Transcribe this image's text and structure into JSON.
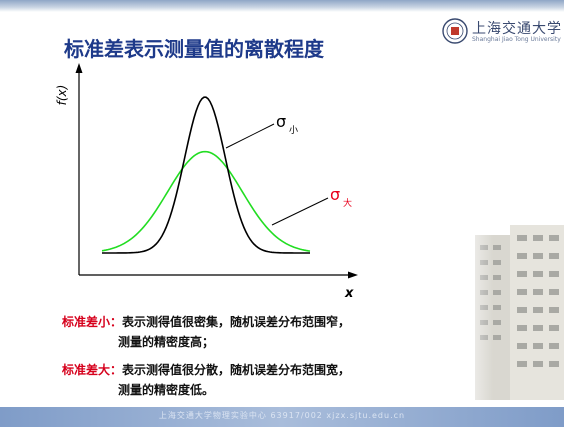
{
  "header": {
    "title": "标准差表示测量值的离散程度",
    "logo_cn": "上海交通大学",
    "logo_en": "Shanghai Jiao Tong University"
  },
  "chart_data": {
    "type": "line",
    "ylabel": "f(x)",
    "xlabel": "x",
    "grid": false,
    "series": [
      {
        "name": "σ小",
        "sigma_label": "σ",
        "sub_label": "小",
        "color": "#000000",
        "peak": 1.0,
        "spread": 0.55
      },
      {
        "name": "σ大",
        "sigma_label": "σ",
        "sub_label": "大",
        "color": "#22dd22",
        "peak": 0.65,
        "spread": 1.0
      }
    ]
  },
  "notes": [
    {
      "highlight": "标准差小：",
      "text": "表示测得值很密集，随机误差分布范围窄，",
      "continuation": "测量的精密度高；"
    },
    {
      "highlight": "标准差大：",
      "text": "表示测得值很分散，随机误差分布范围宽，",
      "continuation": "测量的精密度低。"
    }
  ],
  "footer": {
    "text": "上海交通大学物理实验中心 63917/002 xjzx.sjtu.edu.cn"
  }
}
